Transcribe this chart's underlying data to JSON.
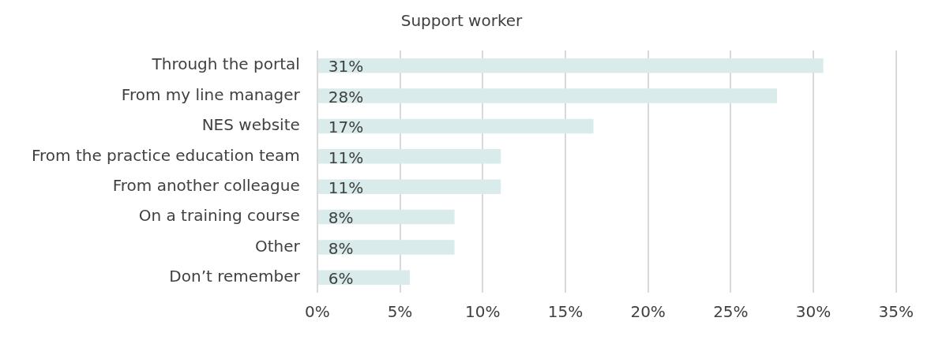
{
  "chart_data": {
    "type": "bar",
    "orientation": "horizontal",
    "title": "Support worker",
    "categories": [
      "Through the portal",
      "From my line manager",
      "NES website",
      "From the practice education team",
      "From another colleague",
      "On a training course",
      "Other",
      "Don’t remember"
    ],
    "values": [
      30.6,
      27.8,
      16.7,
      11.1,
      11.1,
      8.3,
      8.3,
      5.6
    ],
    "value_labels": [
      "31%",
      "28%",
      "17%",
      "11%",
      "11%",
      "8%",
      "8%",
      "6%"
    ],
    "color": "#d9eceb",
    "xlim": [
      0,
      35
    ],
    "xticks": [
      {
        "value": 0,
        "label": "0%"
      },
      {
        "value": 5,
        "label": "5%"
      },
      {
        "value": 10,
        "label": "10%"
      },
      {
        "value": 15,
        "label": "15%"
      },
      {
        "value": 20,
        "label": "20%"
      },
      {
        "value": 25,
        "label": "25%"
      },
      {
        "value": 30,
        "label": "30%"
      },
      {
        "value": 35,
        "label": "35%"
      }
    ],
    "grid": "x",
    "legend": false
  }
}
